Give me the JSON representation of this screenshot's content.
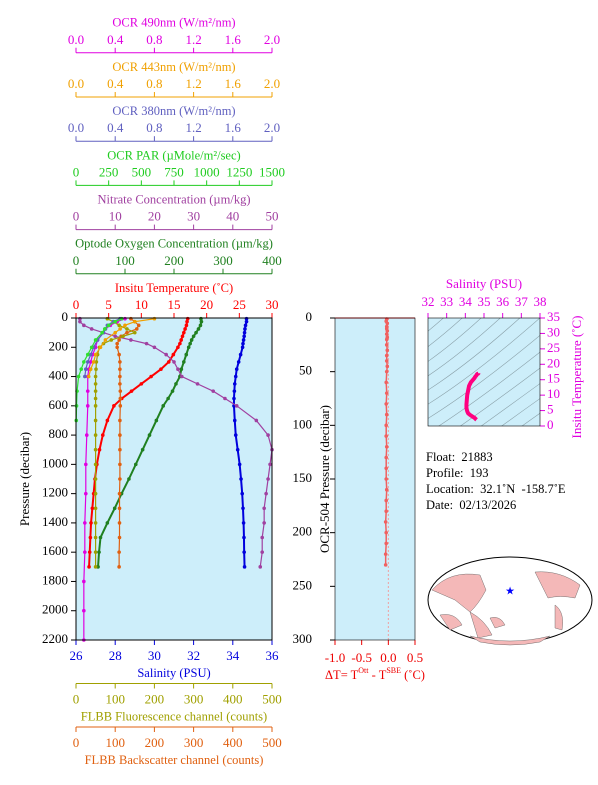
{
  "chart_data": [
    {
      "type": "profile",
      "ylabel": "Pressure (decibar)",
      "ylim": [
        2200,
        0
      ],
      "yticks": [
        0,
        200,
        400,
        600,
        800,
        1000,
        1200,
        1400,
        1600,
        1800,
        2000,
        2200
      ],
      "axes": [
        {
          "label": "OCR 490nm (W/m²/nm)",
          "color": "#e000e0",
          "side": "top",
          "lim": [
            0,
            2
          ],
          "ticks": [
            {
              "value": 0,
              "label": "0.0"
            },
            0.4,
            0.8,
            1.2,
            1.6,
            {
              "value": 2,
              "label": "2.0"
            }
          ]
        },
        {
          "label": "OCR 443nm (W/m²/nm)",
          "color": "#f0a000",
          "side": "top",
          "lim": [
            0,
            2
          ],
          "ticks": [
            {
              "value": 0,
              "label": "0.0"
            },
            0.4,
            0.8,
            1.2,
            1.6,
            {
              "value": 2,
              "label": "2.0"
            }
          ]
        },
        {
          "label": "OCR 380nm (W/m²/nm)",
          "color": "#6060c0",
          "side": "top",
          "lim": [
            0,
            2
          ],
          "ticks": [
            {
              "value": 0,
              "label": "0.0"
            },
            0.4,
            0.8,
            1.2,
            1.6,
            {
              "value": 2,
              "label": "2.0"
            }
          ]
        },
        {
          "label": "OCR PAR (µMole/m²/sec)",
          "color": "#20cc20",
          "side": "top",
          "lim": [
            0,
            1500
          ],
          "ticks": [
            0,
            250,
            500,
            750,
            1000,
            1250,
            1500
          ]
        },
        {
          "label": "Nitrate Concentration (µm/kg)",
          "color": "#a040a0",
          "side": "top",
          "lim": [
            0,
            50
          ],
          "ticks": [
            0,
            10,
            20,
            30,
            40,
            50
          ]
        },
        {
          "label": "Optode Oxygen Concentration (µm/kg)",
          "color": "#208020",
          "side": "top",
          "lim": [
            0,
            400
          ],
          "ticks": [
            0,
            100,
            200,
            300,
            400
          ]
        },
        {
          "label": "Insitu Temperature (˚C)",
          "color": "#ff0000",
          "side": "top",
          "lim": [
            0,
            30
          ],
          "ticks": [
            0,
            5,
            10,
            15,
            20,
            25,
            30
          ]
        },
        {
          "label": "Salinity (PSU)",
          "color": "#0000dd",
          "side": "bottom",
          "lim": [
            26,
            36
          ],
          "ticks": [
            26,
            28,
            30,
            32,
            34,
            36
          ]
        },
        {
          "label": "FLBB Fluorescence channel (counts)",
          "color": "#a0a000",
          "side": "bottom",
          "lim": [
            0,
            500
          ],
          "ticks": [
            0,
            100,
            200,
            300,
            400,
            500
          ]
        },
        {
          "label": "FLBB Backscatter channel (counts)",
          "color": "#e06010",
          "side": "bottom",
          "lim": [
            0,
            500
          ],
          "ticks": [
            0,
            100,
            200,
            300,
            400,
            500
          ]
        }
      ],
      "series": [
        {
          "axis": 6,
          "color": "#ff0000",
          "pressure": [
            5,
            25,
            50,
            75,
            100,
            125,
            150,
            175,
            200,
            250,
            300,
            350,
            400,
            450,
            500,
            550,
            600,
            700,
            800,
            900,
            1000,
            1100,
            1200,
            1300,
            1400,
            1500,
            1600,
            1700
          ],
          "values": [
            17.1,
            17.0,
            16.9,
            16.7,
            16.5,
            16.3,
            16.1,
            15.9,
            15.6,
            14.9,
            14.2,
            13.0,
            11.5,
            10.0,
            8.5,
            7.0,
            5.8,
            4.8,
            4.1,
            3.6,
            3.2,
            2.9,
            2.7,
            2.5,
            2.3,
            2.2,
            2.1,
            2.0
          ]
        },
        {
          "axis": 7,
          "color": "#0000dd",
          "pressure": [
            5,
            25,
            50,
            75,
            100,
            125,
            150,
            175,
            200,
            250,
            300,
            350,
            400,
            450,
            500,
            550,
            600,
            700,
            800,
            900,
            1000,
            1100,
            1200,
            1300,
            1400,
            1500,
            1600,
            1700
          ],
          "values": [
            34.7,
            34.7,
            34.65,
            34.62,
            34.6,
            34.58,
            34.55,
            34.52,
            34.5,
            34.4,
            34.3,
            34.2,
            34.15,
            34.1,
            34.08,
            34.06,
            34.06,
            34.1,
            34.15,
            34.25,
            34.35,
            34.42,
            34.48,
            34.52,
            34.55,
            34.57,
            34.58,
            34.6
          ]
        },
        {
          "axis": 5,
          "color": "#208020",
          "pressure": [
            5,
            25,
            50,
            75,
            100,
            125,
            150,
            175,
            200,
            250,
            300,
            350,
            400,
            450,
            500,
            550,
            600,
            700,
            800,
            900,
            1000,
            1100,
            1200,
            1300,
            1400,
            1500,
            1600,
            1700
          ],
          "values": [
            255,
            256,
            254,
            250,
            245,
            240,
            236,
            233,
            230,
            225,
            220,
            215,
            212,
            204,
            197,
            188,
            178,
            164,
            150,
            136,
            122,
            108,
            93,
            79,
            64,
            50,
            47,
            45
          ]
        },
        {
          "axis": 4,
          "color": "#a040a0",
          "pressure": [
            5,
            25,
            50,
            75,
            100,
            125,
            150,
            175,
            200,
            250,
            300,
            350,
            400,
            450,
            500,
            550,
            600,
            700,
            800,
            900,
            1000,
            1100,
            1200,
            1300,
            1400,
            1500,
            1600,
            1700
          ],
          "values": [
            1,
            1,
            2,
            4,
            7,
            10,
            14,
            18,
            20,
            23,
            25,
            26,
            27,
            31,
            35,
            38,
            41,
            46,
            49,
            50,
            49.5,
            49,
            48.5,
            48,
            48,
            47.5,
            47.5,
            47
          ]
        },
        {
          "axis": 9,
          "color": "#e06010",
          "pressure": [
            5,
            25,
            50,
            75,
            100,
            125,
            150,
            175,
            200,
            250,
            300,
            350,
            400,
            450,
            500,
            550,
            600,
            700,
            800,
            900,
            1000,
            1100,
            1200,
            1300,
            1400,
            1500,
            1600,
            1700
          ],
          "values": [
            140,
            150,
            160,
            155,
            130,
            115,
            110,
            105,
            105,
            110,
            112,
            112,
            112,
            112,
            113,
            113,
            113,
            112,
            112,
            112,
            112,
            112,
            111,
            111,
            111,
            111,
            110,
            110
          ]
        },
        {
          "axis": 8,
          "color": "#a0a000",
          "pressure": [
            5,
            25,
            50,
            75,
            100,
            125,
            150,
            175,
            200,
            250,
            300,
            350,
            400,
            450,
            500,
            550,
            600,
            700,
            800,
            900,
            1000,
            1100,
            1200,
            1300,
            1400,
            1500,
            1600,
            1700
          ],
          "values": [
            80,
            95,
            110,
            130,
            150,
            120,
            90,
            70,
            60,
            55,
            52,
            51,
            50,
            50,
            50,
            50,
            50,
            50,
            50,
            50,
            50,
            50,
            50,
            50,
            50,
            50,
            50,
            50
          ]
        },
        {
          "axis": 0,
          "color": "#e000e0",
          "pressure": [
            5,
            25,
            50,
            75,
            100,
            150,
            200,
            250,
            300,
            350,
            400,
            500,
            600,
            800,
            1000,
            1200,
            1400,
            1600,
            1800,
            2000,
            2200
          ],
          "values": [
            0.5,
            0.42,
            0.35,
            0.3,
            0.28,
            0.22,
            0.2,
            0.17,
            0.15,
            0.13,
            0.12,
            0.12,
            0.12,
            0.11,
            0.1,
            0.1,
            0.09,
            0.09,
            0.08,
            0.08,
            0.08
          ]
        },
        {
          "axis": 1,
          "color": "#f0a000",
          "pressure": [
            5,
            25,
            50,
            75,
            100,
            150,
            200,
            250,
            300,
            350,
            400
          ],
          "values": [
            0.8,
            0.6,
            0.5,
            0.45,
            0.4,
            0.3,
            0.25,
            0.2,
            0.18,
            0.15,
            0.13
          ]
        },
        {
          "axis": 2,
          "color": "#6060c0",
          "pressure": [
            5,
            25,
            50,
            75,
            100,
            150,
            200,
            250,
            300,
            350,
            400
          ],
          "values": [
            0.45,
            0.38,
            0.32,
            0.3,
            0.28,
            0.22,
            0.18,
            0.15,
            0.12,
            0.1,
            0.09
          ]
        },
        {
          "axis": 3,
          "color": "#30e030",
          "pressure": [
            5,
            25,
            50,
            75,
            100,
            150,
            200,
            250,
            300,
            350,
            400,
            500,
            600,
            700
          ],
          "values": [
            350,
            300,
            250,
            220,
            200,
            150,
            120,
            90,
            60,
            40,
            20,
            8,
            4,
            2
          ]
        }
      ]
    },
    {
      "type": "profile",
      "ylabel": "OCR-504 Pressure (decibar)",
      "xlabel": [
        "ΔT= T",
        "Ott",
        " - T",
        "SBE",
        " (˚C)"
      ],
      "xlim": [
        -1,
        0.5
      ],
      "xticks": [
        {
          "value": -1,
          "label": "-1.0"
        },
        -0.5,
        {
          "value": 0,
          "label": "0.0"
        },
        0.5
      ],
      "ylim": [
        300,
        0
      ],
      "yticks": [
        0,
        50,
        100,
        150,
        200,
        250,
        300
      ],
      "color": "#ee0000",
      "series": [
        {
          "color": "#f06060",
          "pressure": [
            1,
            3,
            5,
            8,
            10,
            12,
            15,
            18,
            20,
            25,
            30,
            35,
            40,
            45,
            50,
            60,
            70,
            80,
            90,
            100,
            110,
            120,
            130,
            140,
            150,
            160,
            170,
            180,
            190,
            200,
            210,
            220,
            230
          ],
          "values": [
            -0.03,
            -0.04,
            -0.02,
            -0.03,
            -0.03,
            -0.02,
            -0.03,
            -0.02,
            -0.03,
            -0.03,
            -0.02,
            -0.03,
            -0.03,
            -0.02,
            -0.03,
            -0.04,
            -0.03,
            -0.04,
            -0.03,
            -0.04,
            -0.04,
            -0.03,
            -0.04,
            -0.04,
            -0.04,
            -0.03,
            -0.04,
            -0.04,
            -0.05,
            -0.04,
            -0.04,
            -0.05,
            -0.05
          ]
        }
      ]
    },
    {
      "type": "ts",
      "title": "Salinity (PSU)",
      "ylabel": "Insitu Temperature (˚C)",
      "color": "#e000e0",
      "line_color": "#ff0080",
      "xlim": [
        32,
        38
      ],
      "xticks": [
        32,
        33,
        34,
        35,
        36,
        37,
        38
      ],
      "ylim": [
        0,
        35
      ],
      "yticks": [
        0,
        5,
        10,
        15,
        20,
        25,
        30,
        35
      ]
    }
  ],
  "info": [
    "Float:  21883",
    "Profile:  193",
    "Location:  32.1˚N  -158.7˚E",
    "Date:  02/13/2026"
  ]
}
